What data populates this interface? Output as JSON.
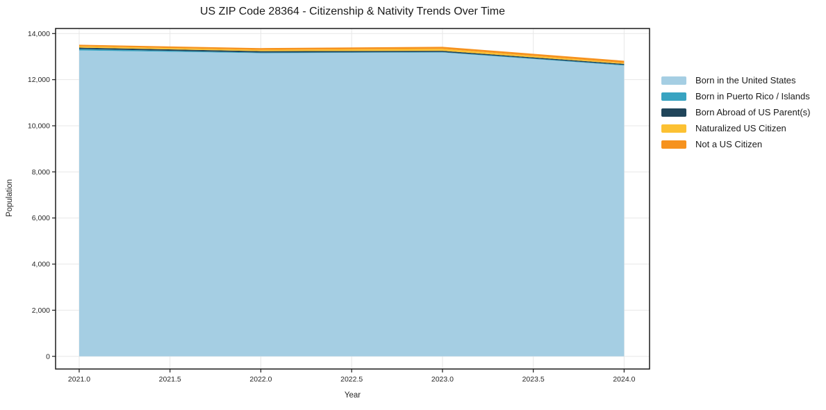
{
  "figure": {
    "title": "US ZIP Code 28364 - Citizenship & Nativity Trends Over Time",
    "xlabel": "Year",
    "ylabel": "Population"
  },
  "chart_data": {
    "type": "area",
    "stacked": true,
    "title": "US ZIP Code 28364 - Citizenship & Nativity Trends Over Time",
    "xlabel": "Year",
    "ylabel": "Population",
    "x": [
      2021,
      2022,
      2023,
      2024
    ],
    "series": [
      {
        "name": "Born in the United States",
        "color": "#a5cee3",
        "values": [
          13270,
          13150,
          13180,
          12610
        ]
      },
      {
        "name": "Born in Puerto Rico / Islands",
        "color": "#38a3c1",
        "values": [
          60,
          25,
          20,
          30
        ]
      },
      {
        "name": "Born Abroad of US Parent(s)",
        "color": "#20455a",
        "values": [
          60,
          60,
          50,
          45
        ]
      },
      {
        "name": "Naturalized US Citizen",
        "color": "#fcc133",
        "values": [
          60,
          60,
          90,
          45
        ]
      },
      {
        "name": "Not a US Citizen",
        "color": "#f6921e",
        "values": [
          65,
          75,
          85,
          90
        ]
      }
    ],
    "totals": [
      13515,
      13370,
      13425,
      12820
    ],
    "xticks": [
      2021.0,
      2021.5,
      2022.0,
      2022.5,
      2023.0,
      2023.5,
      2024.0
    ],
    "xtick_labels": [
      "2021.0",
      "2021.5",
      "2022.0",
      "2022.5",
      "2023.0",
      "2023.5",
      "2024.0"
    ],
    "yticks": [
      0,
      2000,
      4000,
      6000,
      8000,
      10000,
      12000,
      14000
    ],
    "ytick_labels": [
      "0",
      "2,000",
      "4,000",
      "6,000",
      "8,000",
      "10,000",
      "12,000",
      "14,000"
    ],
    "xlim": [
      2020.87,
      2024.14
    ],
    "ylim": [
      -550,
      14220
    ],
    "grid": true,
    "grid_color": "#e7e7e7",
    "spine_color": "#1a1a1a",
    "tick_label_color": "#262626",
    "legend_position": "right-outside"
  }
}
